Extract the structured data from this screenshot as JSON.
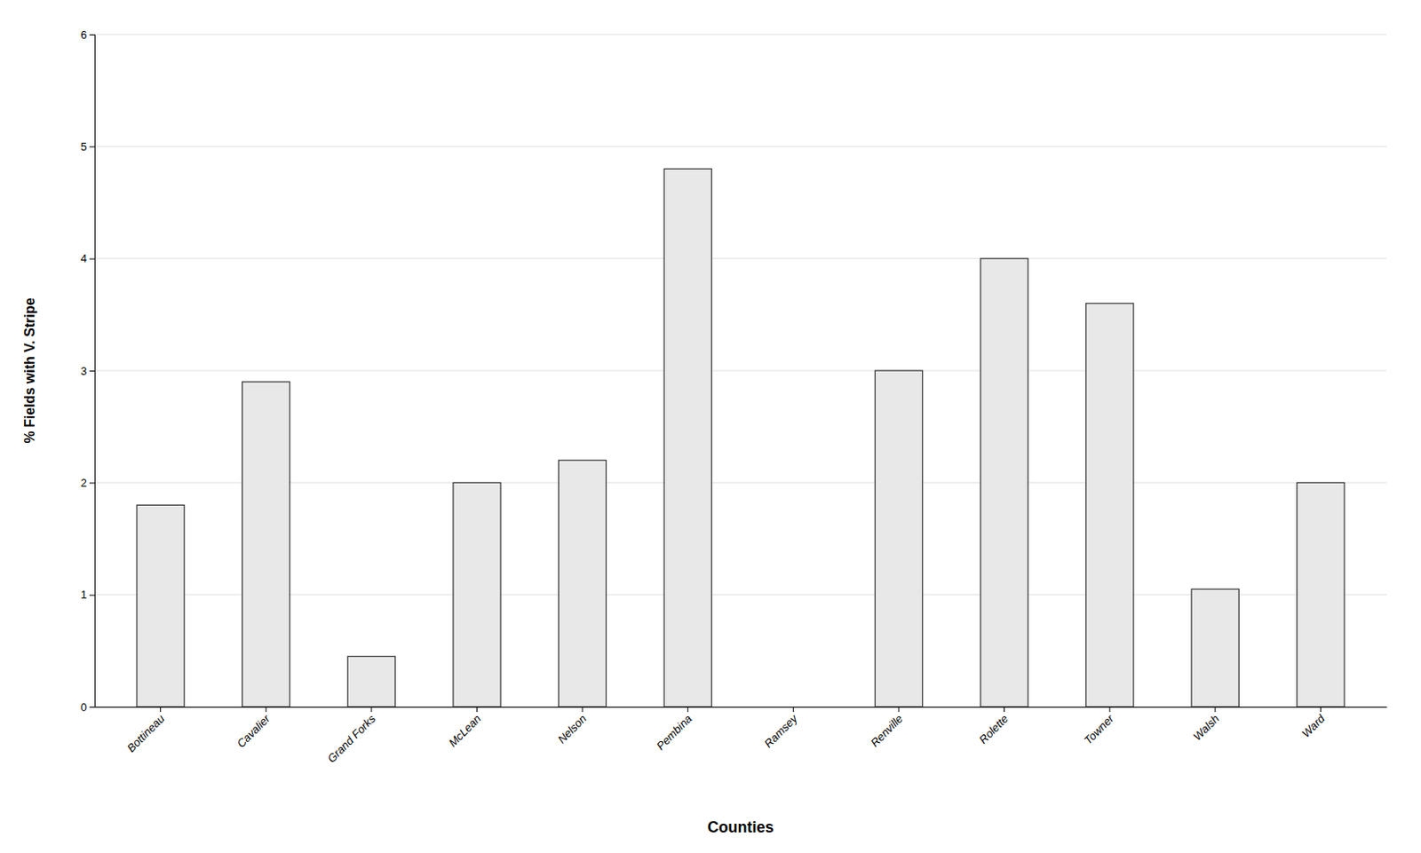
{
  "chart_data": {
    "type": "bar",
    "categories": [
      "Bottineau",
      "Cavalier",
      "Grand Forks",
      "McLean",
      "Nelson",
      "Pembina",
      "Ramsey",
      "Renville",
      "Rolette",
      "Towner",
      "Walsh",
      "Ward"
    ],
    "values": [
      1.8,
      2.9,
      0.45,
      2.0,
      2.2,
      4.8,
      0.0,
      3.0,
      4.0,
      3.6,
      1.05,
      2.0
    ],
    "color": "#e8e8e8",
    "xlabel": "Counties",
    "ylabel": "% Fields with V. Stripe",
    "ylim": [
      0,
      6
    ],
    "yticks": [
      0,
      1,
      2,
      3,
      4,
      5,
      6
    ],
    "grid": true
  }
}
